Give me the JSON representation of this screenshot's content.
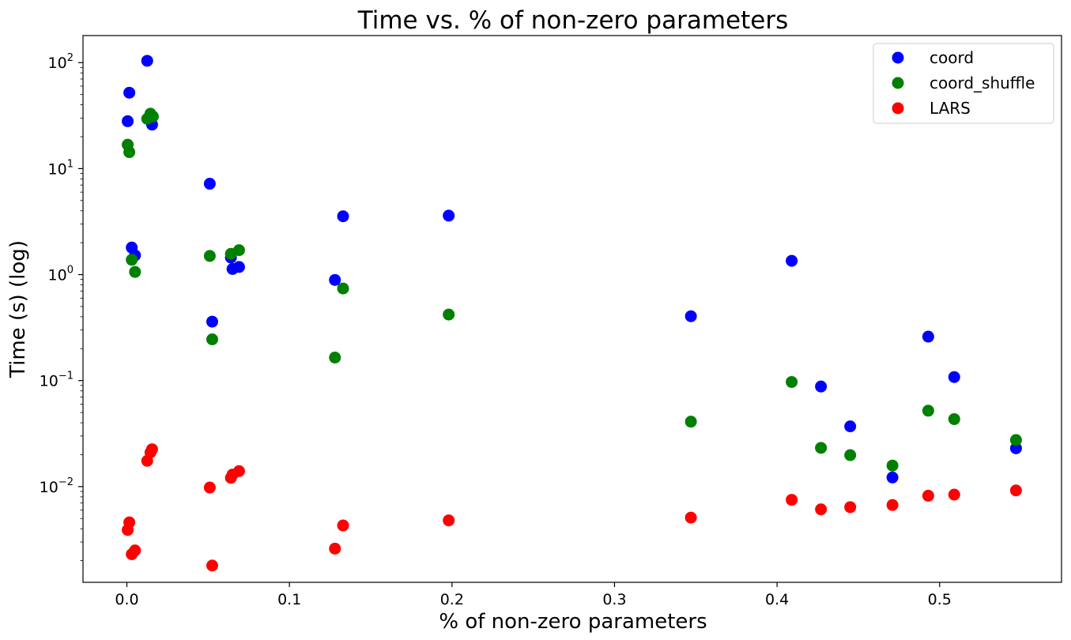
{
  "chart_data": {
    "type": "scatter",
    "title": "Time vs. % of non-zero parameters",
    "xlabel": "% of non-zero parameters",
    "ylabel": "Time (s) (log)",
    "y_scale": "log",
    "xlim": [
      -0.027,
      0.575
    ],
    "ylim": [
      0.00125,
      180
    ],
    "x_ticks": [
      "0.0",
      "0.1",
      "0.2",
      "0.3",
      "0.4",
      "0.5"
    ],
    "y_ticks": [
      {
        "base": "10",
        "exp": "−2"
      },
      {
        "base": "10",
        "exp": "−1"
      },
      {
        "base": "10",
        "exp": "0"
      },
      {
        "base": "10",
        "exp": "1"
      },
      {
        "base": "10",
        "exp": "2"
      }
    ],
    "grid": false,
    "legend_position": "top-right",
    "series": [
      {
        "name": "coord",
        "color": "#0000ff",
        "points": [
          [
            0.0005,
            28.0
          ],
          [
            0.0015,
            52.0
          ],
          [
            0.0125,
            104.0
          ],
          [
            0.0155,
            26.0
          ],
          [
            0.003,
            1.8
          ],
          [
            0.005,
            1.52
          ],
          [
            0.051,
            7.2
          ],
          [
            0.0525,
            0.36
          ],
          [
            0.064,
            1.45
          ],
          [
            0.065,
            1.13
          ],
          [
            0.069,
            1.18
          ],
          [
            0.128,
            0.89
          ],
          [
            0.133,
            3.55
          ],
          [
            0.198,
            3.6
          ],
          [
            0.347,
            0.405
          ],
          [
            0.409,
            1.35
          ],
          [
            0.427,
            0.088
          ],
          [
            0.445,
            0.037
          ],
          [
            0.471,
            0.0122
          ],
          [
            0.493,
            0.26
          ],
          [
            0.509,
            0.108
          ],
          [
            0.547,
            0.023
          ]
        ]
      },
      {
        "name": "coord_shuffle",
        "color": "#008000",
        "points": [
          [
            0.0005,
            16.8
          ],
          [
            0.0015,
            14.3
          ],
          [
            0.0125,
            29.5
          ],
          [
            0.0145,
            33.0
          ],
          [
            0.016,
            31.0
          ],
          [
            0.003,
            1.38
          ],
          [
            0.005,
            1.06
          ],
          [
            0.051,
            1.5
          ],
          [
            0.0525,
            0.245
          ],
          [
            0.064,
            1.57
          ],
          [
            0.069,
            1.7
          ],
          [
            0.128,
            0.165
          ],
          [
            0.133,
            0.74
          ],
          [
            0.198,
            0.42
          ],
          [
            0.347,
            0.041
          ],
          [
            0.409,
            0.097
          ],
          [
            0.427,
            0.0232
          ],
          [
            0.445,
            0.0198
          ],
          [
            0.471,
            0.0158
          ],
          [
            0.493,
            0.052
          ],
          [
            0.509,
            0.0433
          ],
          [
            0.547,
            0.0275
          ]
        ]
      },
      {
        "name": "LARS",
        "color": "#ff0000",
        "points": [
          [
            0.0005,
            0.0039
          ],
          [
            0.0015,
            0.0046
          ],
          [
            0.003,
            0.0023
          ],
          [
            0.005,
            0.0025
          ],
          [
            0.0125,
            0.0175
          ],
          [
            0.0145,
            0.021
          ],
          [
            0.0155,
            0.0225
          ],
          [
            0.051,
            0.0098
          ],
          [
            0.0525,
            0.0018
          ],
          [
            0.064,
            0.0121
          ],
          [
            0.065,
            0.013
          ],
          [
            0.069,
            0.014
          ],
          [
            0.128,
            0.0026
          ],
          [
            0.133,
            0.0043
          ],
          [
            0.198,
            0.0048
          ],
          [
            0.347,
            0.0051
          ],
          [
            0.409,
            0.0075
          ],
          [
            0.427,
            0.0061
          ],
          [
            0.445,
            0.0064
          ],
          [
            0.471,
            0.0067
          ],
          [
            0.493,
            0.0082
          ],
          [
            0.509,
            0.0084
          ],
          [
            0.547,
            0.0092
          ]
        ]
      }
    ]
  }
}
